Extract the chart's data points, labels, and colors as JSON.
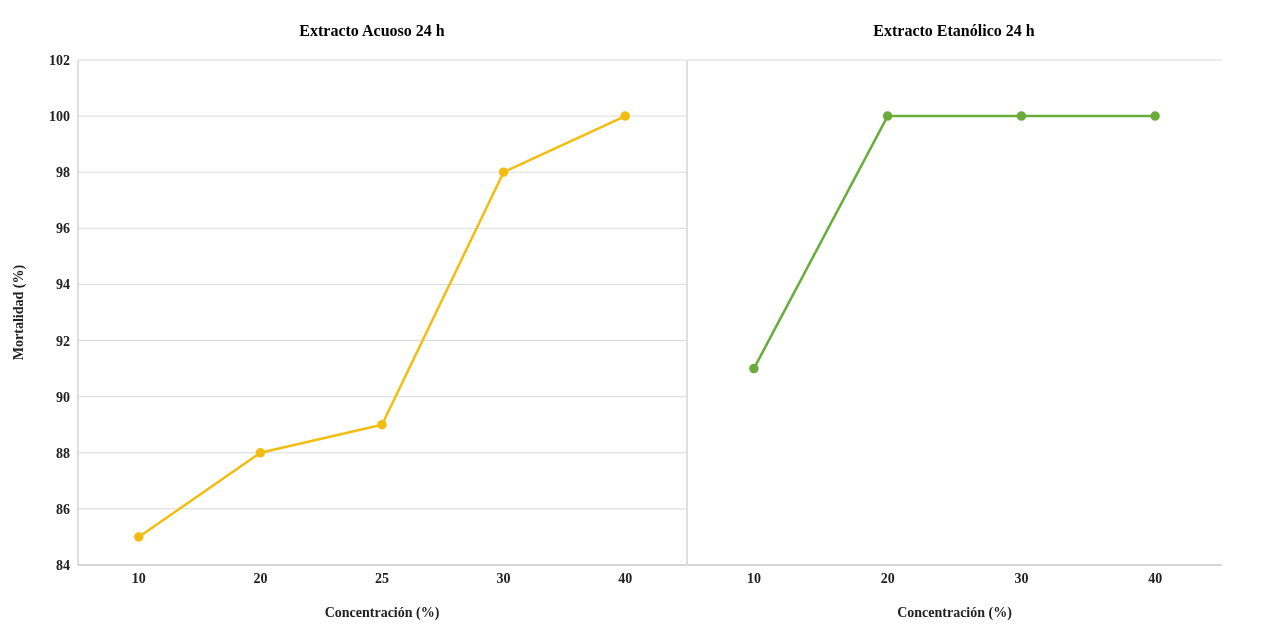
{
  "chart_data": [
    {
      "type": "line",
      "title": "Extracto Acuoso 24 h",
      "xlabel": "Concentración (%)",
      "ylabel": "Mortalidad (%)",
      "categories": [
        "10",
        "20",
        "25",
        "30",
        "40"
      ],
      "series": [
        {
          "color": "#f2bd0e",
          "values": [
            85,
            88,
            89,
            98,
            100
          ]
        }
      ],
      "ylim": [
        84,
        102
      ],
      "yticks": [
        84,
        86,
        88,
        90,
        92,
        94,
        96,
        98,
        100,
        102
      ],
      "grid": "y",
      "marker": "circle"
    },
    {
      "type": "line",
      "title": "Extracto Etanólico 24 h",
      "xlabel": "Concentración (%)",
      "categories": [
        "10",
        "20",
        "30",
        "40"
      ],
      "series": [
        {
          "color": "#6aac3c",
          "values": [
            91,
            100,
            100,
            100
          ]
        }
      ],
      "ylim": [
        84,
        102
      ],
      "yticks": [
        84,
        86,
        88,
        90,
        92,
        94,
        96,
        98,
        100,
        102
      ],
      "grid": "y",
      "marker": "circle",
      "tick_labels": "x"
    }
  ]
}
